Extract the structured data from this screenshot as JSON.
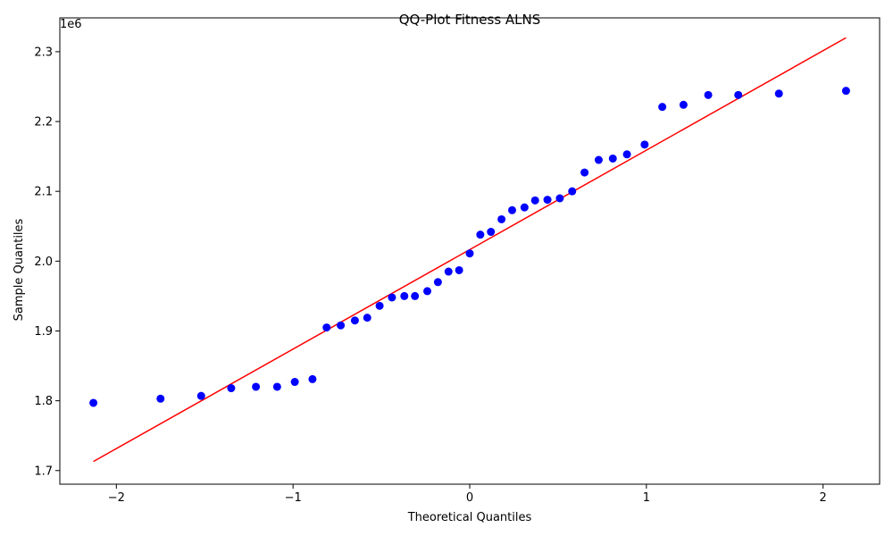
{
  "chart_data": {
    "type": "scatter",
    "title": "QQ-Plot Fitness ALNS",
    "xlabel": "Theoretical Quantiles",
    "ylabel": "Sample Quantiles",
    "y_offset_label": "1e6",
    "xlim": [
      -2.32,
      2.32
    ],
    "ylim": [
      1.6805,
      2.3485
    ],
    "x_ticks": [
      -2,
      -1,
      0,
      1,
      2
    ],
    "x_tick_labels": [
      "−2",
      "−1",
      "0",
      "1",
      "2"
    ],
    "y_ticks": [
      1.7,
      1.8,
      1.9,
      2.0,
      2.1,
      2.2,
      2.3
    ],
    "y_tick_labels": [
      "1.7",
      "1.8",
      "1.9",
      "2.0",
      "2.1",
      "2.2",
      "2.3"
    ],
    "grid": false,
    "colors": {
      "points": "#0000ff",
      "line": "#ff0000",
      "axes": "#000000"
    },
    "series": [
      {
        "kind": "points",
        "x": [
          -2.13,
          -1.75,
          -1.52,
          -1.35,
          -1.21,
          -1.09,
          -0.99,
          -0.89,
          -0.81,
          -0.73,
          -0.65,
          -0.58,
          -0.51,
          -0.44,
          -0.37,
          -0.31,
          -0.24,
          -0.18,
          -0.12,
          -0.06,
          0.0,
          0.06,
          0.12,
          0.18,
          0.24,
          0.31,
          0.37,
          0.44,
          0.51,
          0.58,
          0.65,
          0.73,
          0.81,
          0.89,
          0.99,
          1.09,
          1.21,
          1.35,
          1.52,
          1.75,
          2.13
        ],
        "y": [
          1.797,
          1.803,
          1.807,
          1.818,
          1.82,
          1.82,
          1.827,
          1.831,
          1.905,
          1.908,
          1.915,
          1.919,
          1.936,
          1.948,
          1.95,
          1.95,
          1.957,
          1.97,
          1.985,
          1.987,
          2.011,
          2.038,
          2.042,
          2.06,
          2.073,
          2.077,
          2.087,
          2.088,
          2.09,
          2.1,
          2.127,
          2.145,
          2.147,
          2.153,
          2.167,
          2.221,
          2.224,
          2.238,
          2.238,
          2.24,
          2.244
        ]
      },
      {
        "kind": "line",
        "x": [
          -2.13,
          2.13
        ],
        "y": [
          1.713,
          2.32
        ]
      }
    ]
  }
}
